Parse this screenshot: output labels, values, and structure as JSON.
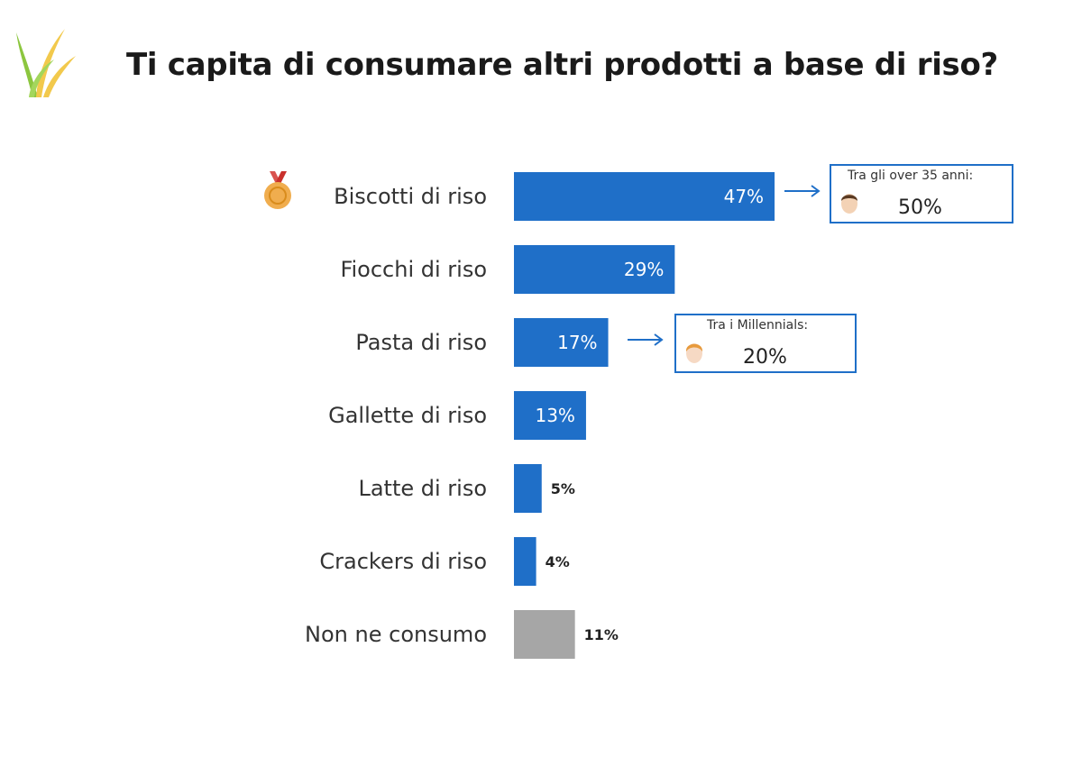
{
  "title": "Ti capita di consumare altri prodotti a base di riso?",
  "icons": {
    "logo": "rice-plant-icon",
    "medal": "gold-medal-icon",
    "face": "person-face-icon",
    "arrow": "arrow-right-icon"
  },
  "colors": {
    "bar": "#1f6fc8",
    "bar_other": "#a6a6a6",
    "callout_border": "#1f6fc8"
  },
  "chart_data": {
    "type": "bar",
    "orientation": "horizontal",
    "title": "Ti capita di consumare altri prodotti a base di riso?",
    "categories": [
      "Biscotti di riso",
      "Fiocchi di riso",
      "Pasta di riso",
      "Gallette di riso",
      "Latte di riso",
      "Crackers di riso",
      "Non ne consumo"
    ],
    "values": [
      47,
      29,
      17,
      13,
      5,
      4,
      11
    ],
    "value_labels": [
      "47%",
      "29%",
      "17%",
      "13%",
      "5%",
      "4%",
      "11%"
    ],
    "unit": "%",
    "xlim": [
      0,
      100
    ],
    "grid": false,
    "annotations": [
      {
        "category": "Biscotti di riso",
        "label": "Tra gli over 35 anni:",
        "value": "50%"
      },
      {
        "category": "Pasta di riso",
        "label": "Tra i Millennials:",
        "value": "20%"
      }
    ]
  }
}
